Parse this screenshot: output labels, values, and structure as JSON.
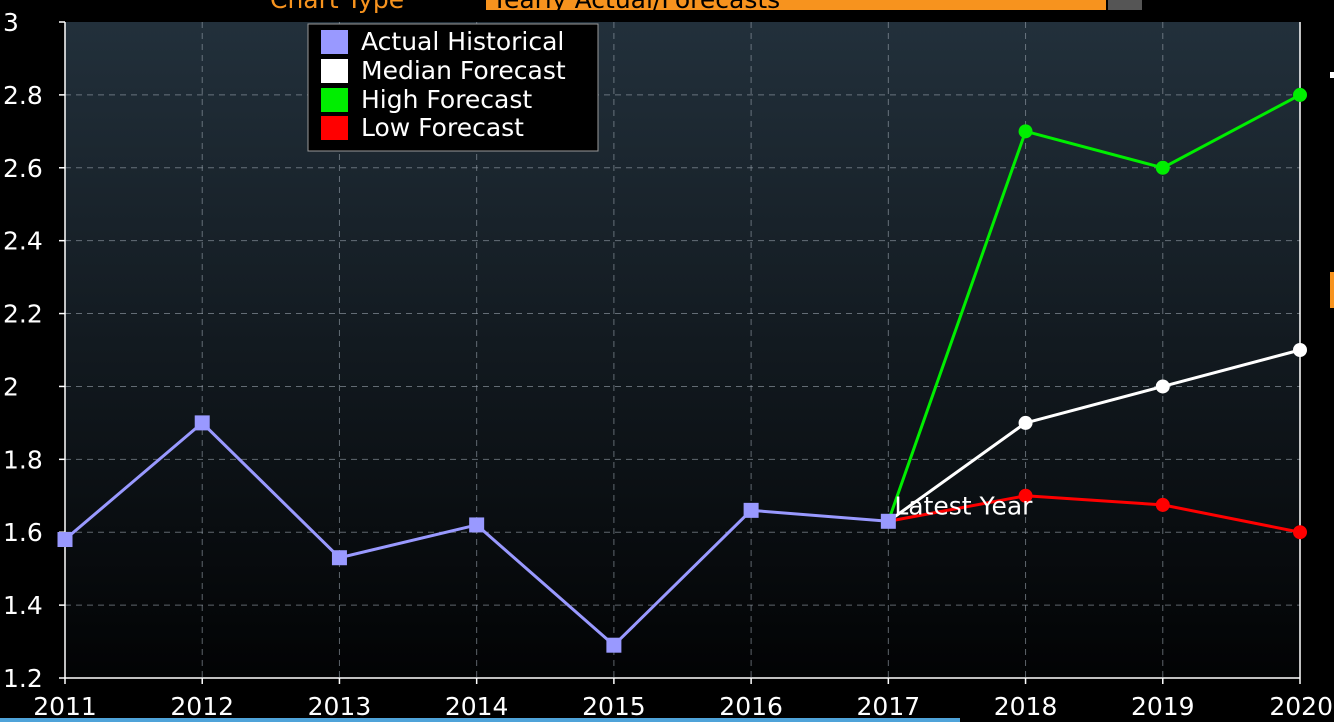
{
  "header": {
    "label": "Chart Type",
    "value": "Yearly Actual/Forecasts"
  },
  "chart_data": {
    "type": "line",
    "title": "",
    "xlabel": "",
    "ylabel": "",
    "x": [
      2011,
      2012,
      2013,
      2014,
      2015,
      2016,
      2017,
      2018,
      2019,
      2020
    ],
    "xlim": [
      2011,
      2020
    ],
    "ylim": [
      1.2,
      3
    ],
    "yticks": [
      1.2,
      1.4,
      1.6,
      1.8,
      2,
      2.2,
      2.4,
      2.6,
      2.8,
      3
    ],
    "ytick_labels": [
      "1.2",
      "1.4",
      "1.6",
      "1.8",
      "2",
      "2.2",
      "2.4",
      "2.6",
      "2.8",
      "3"
    ],
    "xtick_labels": [
      "2011",
      "2012",
      "2013",
      "2014",
      "2015",
      "2016",
      "2017",
      "2018",
      "2019",
      "2020"
    ],
    "grid": true,
    "legend_position": "top-left",
    "series": [
      {
        "name": "Actual Historical",
        "color": "#9999ff",
        "marker": "square",
        "x": [
          2011,
          2012,
          2013,
          2014,
          2015,
          2016,
          2017
        ],
        "values": [
          1.58,
          1.9,
          1.53,
          1.62,
          1.29,
          1.66,
          1.63
        ]
      },
      {
        "name": "Median Forecast",
        "color": "#ffffff",
        "marker": "circle",
        "x": [
          2017,
          2018,
          2019,
          2020
        ],
        "values": [
          1.63,
          1.9,
          2.0,
          2.1
        ]
      },
      {
        "name": "High Forecast",
        "color": "#00ee00",
        "marker": "circle",
        "x": [
          2017,
          2018,
          2019,
          2020
        ],
        "values": [
          1.63,
          2.7,
          2.6,
          2.8
        ]
      },
      {
        "name": "Low Forecast",
        "color": "#ff0000",
        "marker": "circle",
        "x": [
          2017,
          2018,
          2019,
          2020
        ],
        "values": [
          1.63,
          1.7,
          1.675,
          1.6
        ]
      }
    ],
    "annotations": [
      {
        "text": "Latest Year",
        "x": 2017,
        "y": 1.63
      }
    ]
  }
}
